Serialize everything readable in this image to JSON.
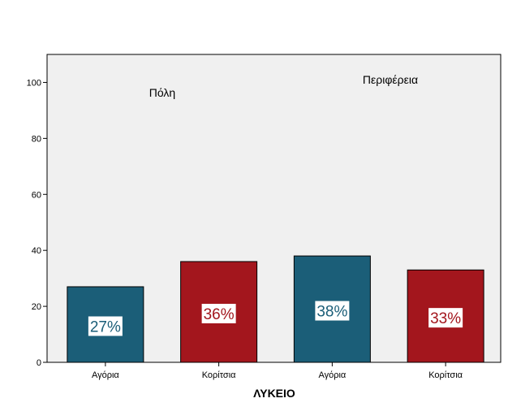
{
  "chart_data": {
    "type": "bar",
    "xlabel": "ΛΥΚΕΙΟ",
    "ylabel": "",
    "ylim": [
      0,
      110
    ],
    "yticks": [
      0,
      20,
      40,
      60,
      80,
      100
    ],
    "grid": false,
    "categories": [
      "Αγόρια",
      "Κορίτσια",
      "Αγόρια",
      "Κορίτσια"
    ],
    "groups": [
      "Πόλη",
      "Περιφέρεια"
    ],
    "values": [
      27,
      36,
      38,
      33
    ],
    "data_labels": [
      "27%",
      "36%",
      "38%",
      "33%"
    ],
    "colors": {
      "Αγόρια": "#1b5e78",
      "Κορίτσια": "#a3161d",
      "plot_background": "#f0f0f0"
    }
  }
}
